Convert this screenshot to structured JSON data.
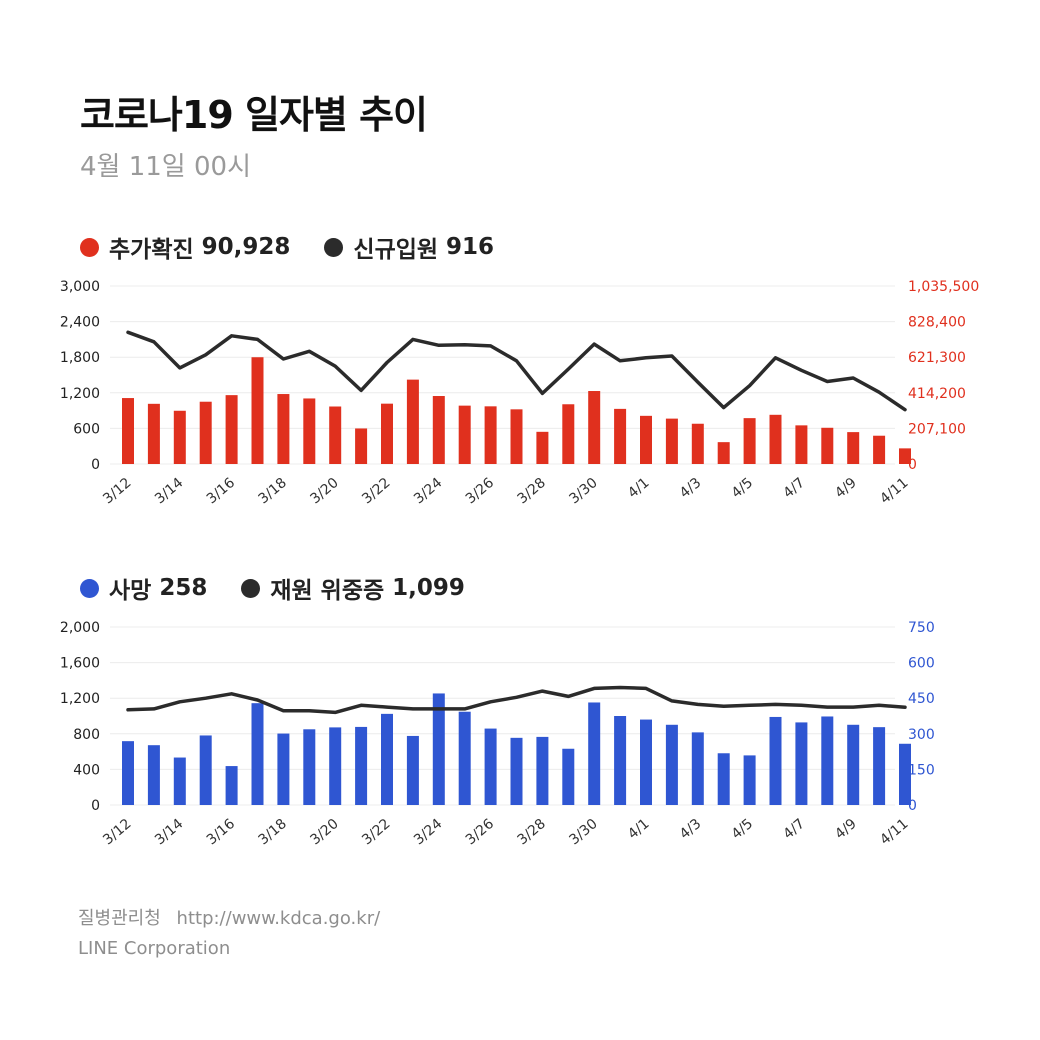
{
  "header": {
    "title": "코로나19 일자별 추이",
    "date": "4월 11일 00시"
  },
  "legend_top": [
    {
      "label": "추가확진",
      "value": "90,928",
      "color": "#e0301e"
    },
    {
      "label": "신규입원",
      "value": "916",
      "color": "#2b2b2b"
    }
  ],
  "legend_bottom": [
    {
      "label": "사망",
      "value": "258",
      "color": "#2f56d2"
    },
    {
      "label": "재원 위중증",
      "value": "1,099",
      "color": "#2b2b2b"
    }
  ],
  "source": {
    "agency": "질병관리청",
    "url": "http://www.kdca.go.kr/",
    "provider": "LINE Corporation"
  },
  "chart_data": [
    {
      "type": "bar",
      "categories": [
        "3/12",
        "3/13",
        "3/14",
        "3/15",
        "3/16",
        "3/17",
        "3/18",
        "3/19",
        "3/20",
        "3/21",
        "3/22",
        "3/23",
        "3/24",
        "3/25",
        "3/26",
        "3/27",
        "3/28",
        "3/29",
        "3/30",
        "3/31",
        "4/1",
        "4/2",
        "4/3",
        "4/4",
        "4/5",
        "4/6",
        "4/7",
        "4/8",
        "4/9",
        "4/10",
        "4/11"
      ],
      "x_tick_labels": [
        "3/12",
        "3/14",
        "3/16",
        "3/18",
        "3/20",
        "3/22",
        "3/24",
        "3/26",
        "3/28",
        "3/30",
        "4/1",
        "4/3",
        "4/5",
        "4/7",
        "4/9",
        "4/11"
      ],
      "series": [
        {
          "name": "추가확진",
          "axis": "right",
          "color": "#e0301e",
          "chart": "bar",
          "values": [
            383600,
            350100,
            309700,
            362300,
            400600,
            621100,
            407000,
            381300,
            334500,
            206700,
            351000,
            490800,
            395500,
            339500,
            335500,
            318000,
            187200,
            347500,
            424600,
            320700,
            280200,
            264000,
            234200,
            127100,
            266800,
            286200,
            224800,
            210700,
            185500,
            164500,
            90928
          ]
        },
        {
          "name": "신규입원",
          "axis": "left",
          "color": "#2b2b2b",
          "chart": "line",
          "values": [
            2220,
            2060,
            1620,
            1840,
            2160,
            2100,
            1770,
            1900,
            1650,
            1240,
            1710,
            2100,
            2000,
            2010,
            1990,
            1740,
            1190,
            1600,
            2020,
            1740,
            1790,
            1820,
            1380,
            950,
            1320,
            1790,
            1580,
            1390,
            1450,
            1210,
            916
          ]
        }
      ],
      "y_left": {
        "min": 0,
        "max": 3000,
        "ticks": [
          "0",
          "600",
          "1,200",
          "1,800",
          "2,400",
          "3,000"
        ]
      },
      "y_right": {
        "min": 0,
        "max": 1035500,
        "ticks": [
          "0",
          "207,100",
          "414,200",
          "621,300",
          "828,400",
          "1,035,500"
        ]
      },
      "grid": true
    },
    {
      "type": "bar",
      "categories": [
        "3/12",
        "3/13",
        "3/14",
        "3/15",
        "3/16",
        "3/17",
        "3/18",
        "3/19",
        "3/20",
        "3/21",
        "3/22",
        "3/23",
        "3/24",
        "3/25",
        "3/26",
        "3/27",
        "3/28",
        "3/29",
        "3/30",
        "3/31",
        "4/1",
        "4/2",
        "4/3",
        "4/4",
        "4/5",
        "4/6",
        "4/7",
        "4/8",
        "4/9",
        "4/10",
        "4/11"
      ],
      "x_tick_labels": [
        "3/12",
        "3/14",
        "3/16",
        "3/18",
        "3/20",
        "3/22",
        "3/24",
        "3/26",
        "3/28",
        "3/30",
        "4/1",
        "4/3",
        "4/5",
        "4/7",
        "4/9",
        "4/11"
      ],
      "series": [
        {
          "name": "사망",
          "axis": "right",
          "color": "#2f56d2",
          "chart": "bar",
          "values": [
            269,
            252,
            200,
            293,
            164,
            429,
            301,
            319,
            327,
            329,
            384,
            291,
            470,
            393,
            322,
            283,
            287,
            237,
            432,
            375,
            360,
            338,
            306,
            218,
            209,
            371,
            348,
            373,
            338,
            328,
            258
          ]
        },
        {
          "name": "재원 위중증",
          "axis": "left",
          "color": "#2b2b2b",
          "chart": "line",
          "values": [
            1070,
            1080,
            1160,
            1200,
            1250,
            1180,
            1060,
            1060,
            1040,
            1120,
            1100,
            1080,
            1080,
            1080,
            1160,
            1210,
            1280,
            1220,
            1310,
            1320,
            1310,
            1170,
            1130,
            1110,
            1120,
            1130,
            1120,
            1100,
            1100,
            1120,
            1099
          ]
        }
      ],
      "y_left": {
        "min": 0,
        "max": 2000,
        "ticks": [
          "0",
          "400",
          "800",
          "1,200",
          "1,600",
          "2,000"
        ]
      },
      "y_right": {
        "min": 0,
        "max": 750,
        "ticks": [
          "0",
          "150",
          "300",
          "450",
          "600",
          "750"
        ]
      },
      "grid": true
    }
  ]
}
